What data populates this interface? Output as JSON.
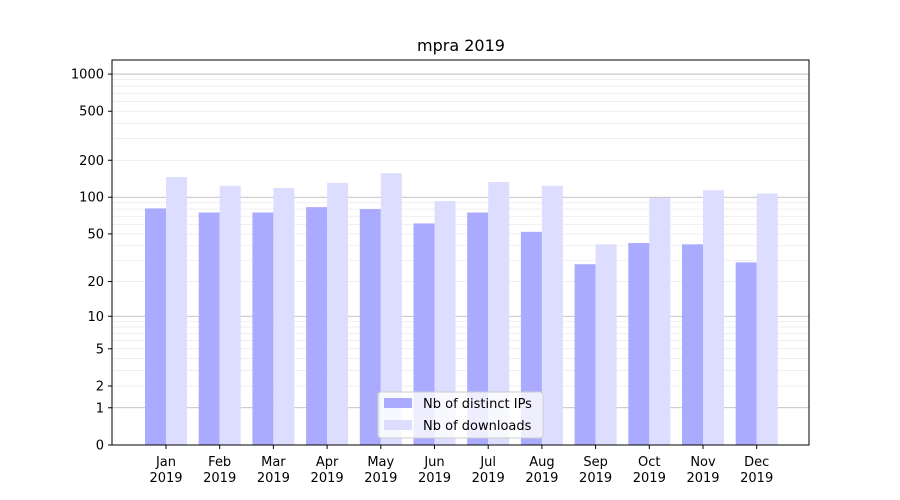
{
  "chart_data": {
    "type": "bar",
    "title": "mpra 2019",
    "xlabel": "",
    "ylabel": "",
    "yscale": "symlog",
    "categories": [
      "Jan\n2019",
      "Feb\n2019",
      "Mar\n2019",
      "Apr\n2019",
      "May\n2019",
      "Jun\n2019",
      "Jul\n2019",
      "Aug\n2019",
      "Sep\n2019",
      "Oct\n2019",
      "Nov\n2019",
      "Dec\n2019"
    ],
    "series": [
      {
        "name": "Nb of distinct IPs",
        "color": "#aaaaff",
        "values": [
          81,
          75,
          75,
          83,
          80,
          61,
          75,
          52,
          28,
          42,
          41,
          29
        ]
      },
      {
        "name": "Nb of downloads",
        "color": "#ddddff",
        "values": [
          146,
          124,
          119,
          131,
          157,
          93,
          133,
          124,
          41,
          99,
          114,
          107
        ]
      }
    ],
    "ylim": [
      0,
      1300
    ],
    "yticks": [
      0,
      1,
      2,
      5,
      10,
      20,
      50,
      100,
      200,
      500,
      1000
    ],
    "grid": true,
    "legend": "bottom-center"
  }
}
